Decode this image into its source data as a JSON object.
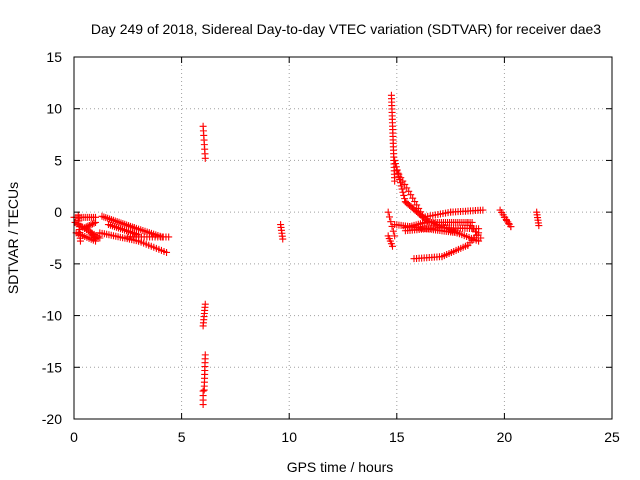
{
  "chart_data": {
    "type": "scatter",
    "title": "Day 249 of 2018, Sidereal Day-to-day VTEC variation (SDTVAR) for receiver dae3",
    "xlabel": "GPS time / hours",
    "ylabel": "SDTVAR / TECUs",
    "xlim": [
      0,
      25
    ],
    "ylim": [
      -20,
      15
    ],
    "xticks": [
      0,
      5,
      10,
      15,
      20,
      25
    ],
    "yticks": [
      -20,
      -15,
      -10,
      -5,
      0,
      5,
      10,
      15
    ],
    "xtick_labels": [
      "0",
      "5",
      "10",
      "15",
      "20",
      "25"
    ],
    "ytick_labels": [
      "-20",
      "-15",
      "-10",
      "-5",
      "0",
      "5",
      "10",
      "15"
    ],
    "grid": true,
    "marker": "+",
    "color": "#ff0000",
    "series": [
      {
        "name": "SDTVAR",
        "tracks": [
          {
            "from": [
              0.0,
              -0.5
            ],
            "to": [
              1.0,
              -0.5
            ],
            "n": 12
          },
          {
            "from": [
              0.05,
              -1.0
            ],
            "to": [
              1.2,
              -2.5
            ],
            "n": 14
          },
          {
            "from": [
              0.1,
              -2.0
            ],
            "to": [
              1.0,
              -2.8
            ],
            "n": 10
          },
          {
            "from": [
              0.2,
              -0.3
            ],
            "to": [
              0.3,
              -2.8
            ],
            "n": 10
          },
          {
            "from": [
              0.5,
              -1.5
            ],
            "to": [
              1.0,
              -1.0
            ],
            "n": 8
          },
          {
            "from": [
              0.8,
              -2.0
            ],
            "to": [
              1.0,
              -2.6
            ],
            "n": 5
          },
          {
            "from": [
              1.3,
              -0.4
            ],
            "to": [
              2.8,
              -1.5
            ],
            "n": 18
          },
          {
            "from": [
              2.8,
              -1.5
            ],
            "to": [
              4.1,
              -2.4
            ],
            "n": 14
          },
          {
            "from": [
              1.6,
              -1.2
            ],
            "to": [
              3.0,
              -2.2
            ],
            "n": 16
          },
          {
            "from": [
              1.2,
              -2.0
            ],
            "to": [
              3.0,
              -2.8
            ],
            "n": 18
          },
          {
            "from": [
              3.0,
              -2.8
            ],
            "to": [
              4.3,
              -3.9
            ],
            "n": 12
          },
          {
            "from": [
              2.5,
              -2.4
            ],
            "to": [
              4.4,
              -2.4
            ],
            "n": 16
          },
          {
            "from": [
              6.0,
              8.3
            ],
            "to": [
              6.1,
              5.2
            ],
            "n": 8
          },
          {
            "from": [
              6.1,
              -8.9
            ],
            "to": [
              6.0,
              -11.0
            ],
            "n": 8
          },
          {
            "from": [
              6.1,
              -13.8
            ],
            "to": [
              6.05,
              -17.2
            ],
            "n": 10
          },
          {
            "from": [
              6.0,
              -17.3
            ],
            "to": [
              6.0,
              -18.6
            ],
            "n": 4
          },
          {
            "from": [
              9.6,
              -1.2
            ],
            "to": [
              9.7,
              -2.6
            ],
            "n": 6
          },
          {
            "from": [
              14.75,
              11.3
            ],
            "to": [
              14.9,
              3.0
            ],
            "n": 26
          },
          {
            "from": [
              14.9,
              5.0
            ],
            "to": [
              15.4,
              1.0
            ],
            "n": 14
          },
          {
            "from": [
              15.4,
              1.0
            ],
            "to": [
              16.5,
              -1.0
            ],
            "n": 18
          },
          {
            "from": [
              16.5,
              -1.0
            ],
            "to": [
              18.5,
              -1.0
            ],
            "n": 22
          },
          {
            "from": [
              15.0,
              4.0
            ],
            "to": [
              16.2,
              -0.3
            ],
            "n": 14
          },
          {
            "from": [
              14.6,
              0.0
            ],
            "to": [
              14.9,
              -2.3
            ],
            "n": 6
          },
          {
            "from": [
              14.6,
              -2.3
            ],
            "to": [
              14.8,
              -3.3
            ],
            "n": 5
          },
          {
            "from": [
              14.9,
              -1.2
            ],
            "to": [
              17.8,
              -2.0
            ],
            "n": 30
          },
          {
            "from": [
              17.8,
              -2.0
            ],
            "to": [
              18.8,
              -2.8
            ],
            "n": 10
          },
          {
            "from": [
              15.4,
              -1.5
            ],
            "to": [
              16.5,
              -0.9
            ],
            "n": 12
          },
          {
            "from": [
              16.5,
              -0.9
            ],
            "to": [
              17.8,
              -2.0
            ],
            "n": 12
          },
          {
            "from": [
              15.4,
              -1.8
            ],
            "to": [
              17.0,
              -1.5
            ],
            "n": 16
          },
          {
            "from": [
              17.0,
              -1.5
            ],
            "to": [
              18.8,
              -1.6
            ],
            "n": 18
          },
          {
            "from": [
              16.2,
              -0.5
            ],
            "to": [
              17.5,
              0.0
            ],
            "n": 12
          },
          {
            "from": [
              17.5,
              0.0
            ],
            "to": [
              19.0,
              0.2
            ],
            "n": 14
          },
          {
            "from": [
              15.8,
              -4.5
            ],
            "to": [
              17.1,
              -4.3
            ],
            "n": 12
          },
          {
            "from": [
              17.1,
              -4.3
            ],
            "to": [
              18.3,
              -3.2
            ],
            "n": 12
          },
          {
            "from": [
              18.3,
              -3.2
            ],
            "to": [
              18.8,
              -2.0
            ],
            "n": 6
          },
          {
            "from": [
              18.3,
              -1.0
            ],
            "to": [
              18.9,
              -2.5
            ],
            "n": 6
          },
          {
            "from": [
              19.8,
              0.2
            ],
            "to": [
              20.3,
              -1.4
            ],
            "n": 8
          },
          {
            "from": [
              20.0,
              -0.5
            ],
            "to": [
              20.3,
              -1.4
            ],
            "n": 4
          },
          {
            "from": [
              21.5,
              0.0
            ],
            "to": [
              21.6,
              -1.3
            ],
            "n": 6
          }
        ]
      }
    ]
  }
}
